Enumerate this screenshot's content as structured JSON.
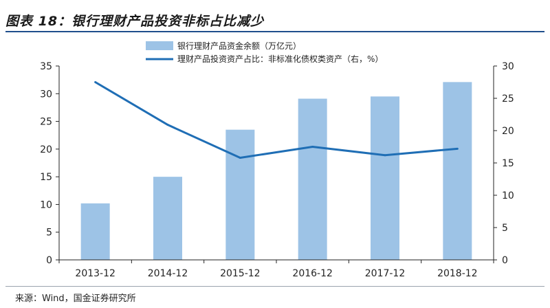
{
  "header": {
    "title": "图表 18：银行理财产品投资非标占比减少"
  },
  "footer": {
    "source": "来源：Wind，国金证券研究所"
  },
  "colors": {
    "bar": "#9dc3e6",
    "line": "#1f6eb5",
    "axis": "#222222",
    "rule": "#1f4e8c"
  },
  "chart_data": {
    "type": "bar",
    "categories": [
      "2013-12",
      "2014-12",
      "2015-12",
      "2016-12",
      "2017-12",
      "2018-12"
    ],
    "series": [
      {
        "name": "银行理财产品资金余额（万亿元）",
        "type": "bar",
        "axis": "left",
        "values": [
          10.2,
          15.0,
          23.5,
          29.1,
          29.5,
          32.1
        ]
      },
      {
        "name": "理财产品投资资产占比：非标准化债权类资产（右，%）",
        "type": "line",
        "axis": "right",
        "values": [
          27.5,
          20.9,
          15.8,
          17.5,
          16.2,
          17.2
        ]
      }
    ],
    "y_left": {
      "min": 0,
      "max": 35,
      "step": 5
    },
    "y_right": {
      "min": 0,
      "max": 30,
      "step": 5
    },
    "grid": false,
    "legend_position": "top-center"
  }
}
